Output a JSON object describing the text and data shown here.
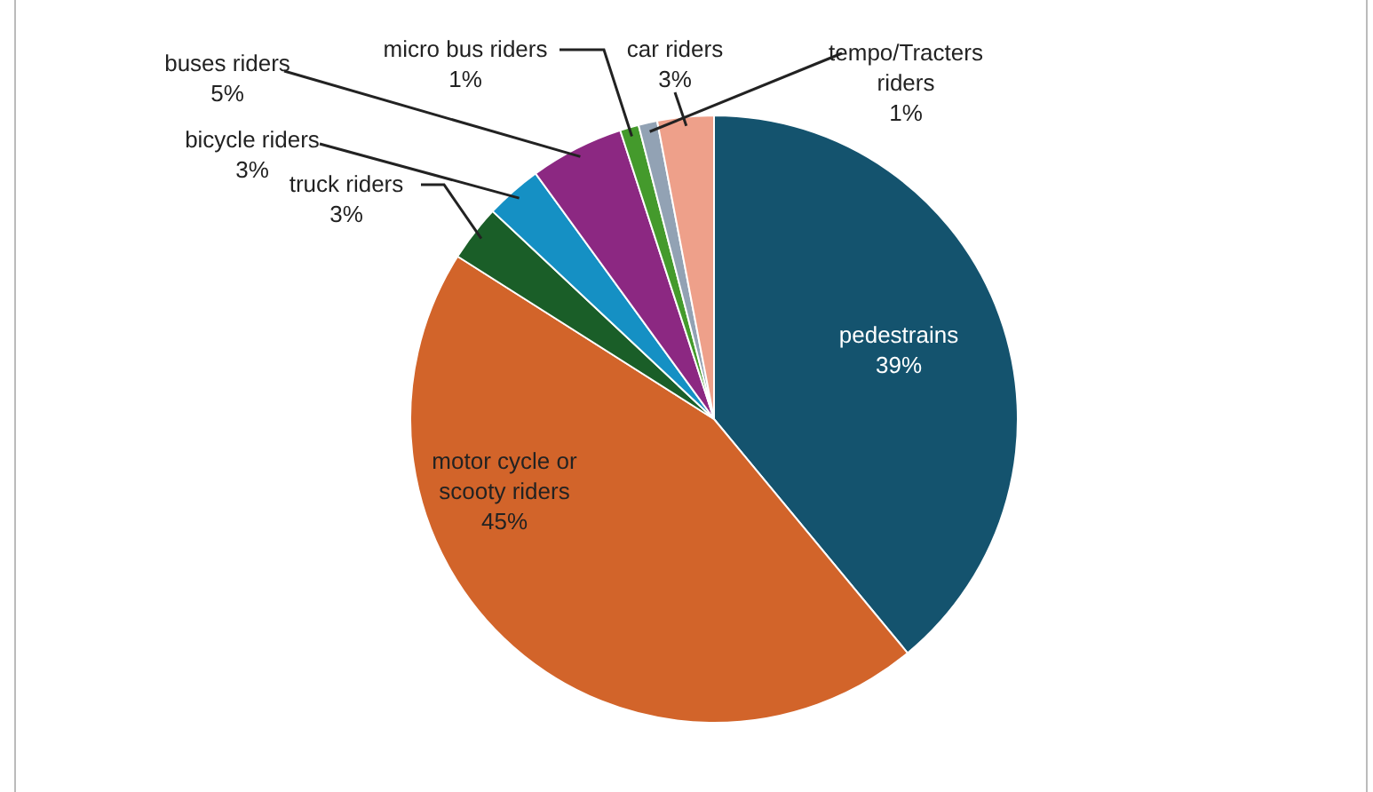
{
  "chart_data": {
    "type": "pie",
    "categories": [
      "pedestrains",
      "motor cycle or scooty riders",
      "truck riders",
      "bicycle riders",
      "buses riders",
      "micro bus riders",
      "tempo/Tracters riders",
      "car riders"
    ],
    "values": [
      39,
      45,
      3,
      3,
      5,
      1,
      1,
      3
    ],
    "value_labels": [
      "39%",
      "45%",
      "3%",
      "3%",
      "5%",
      "1%",
      "1%",
      "3%"
    ],
    "colors": [
      "#14536e",
      "#d2642a",
      "#1a5e28",
      "#1590c4",
      "#8c2882",
      "#449a2c",
      "#92a2b4",
      "#eea08a"
    ]
  }
}
